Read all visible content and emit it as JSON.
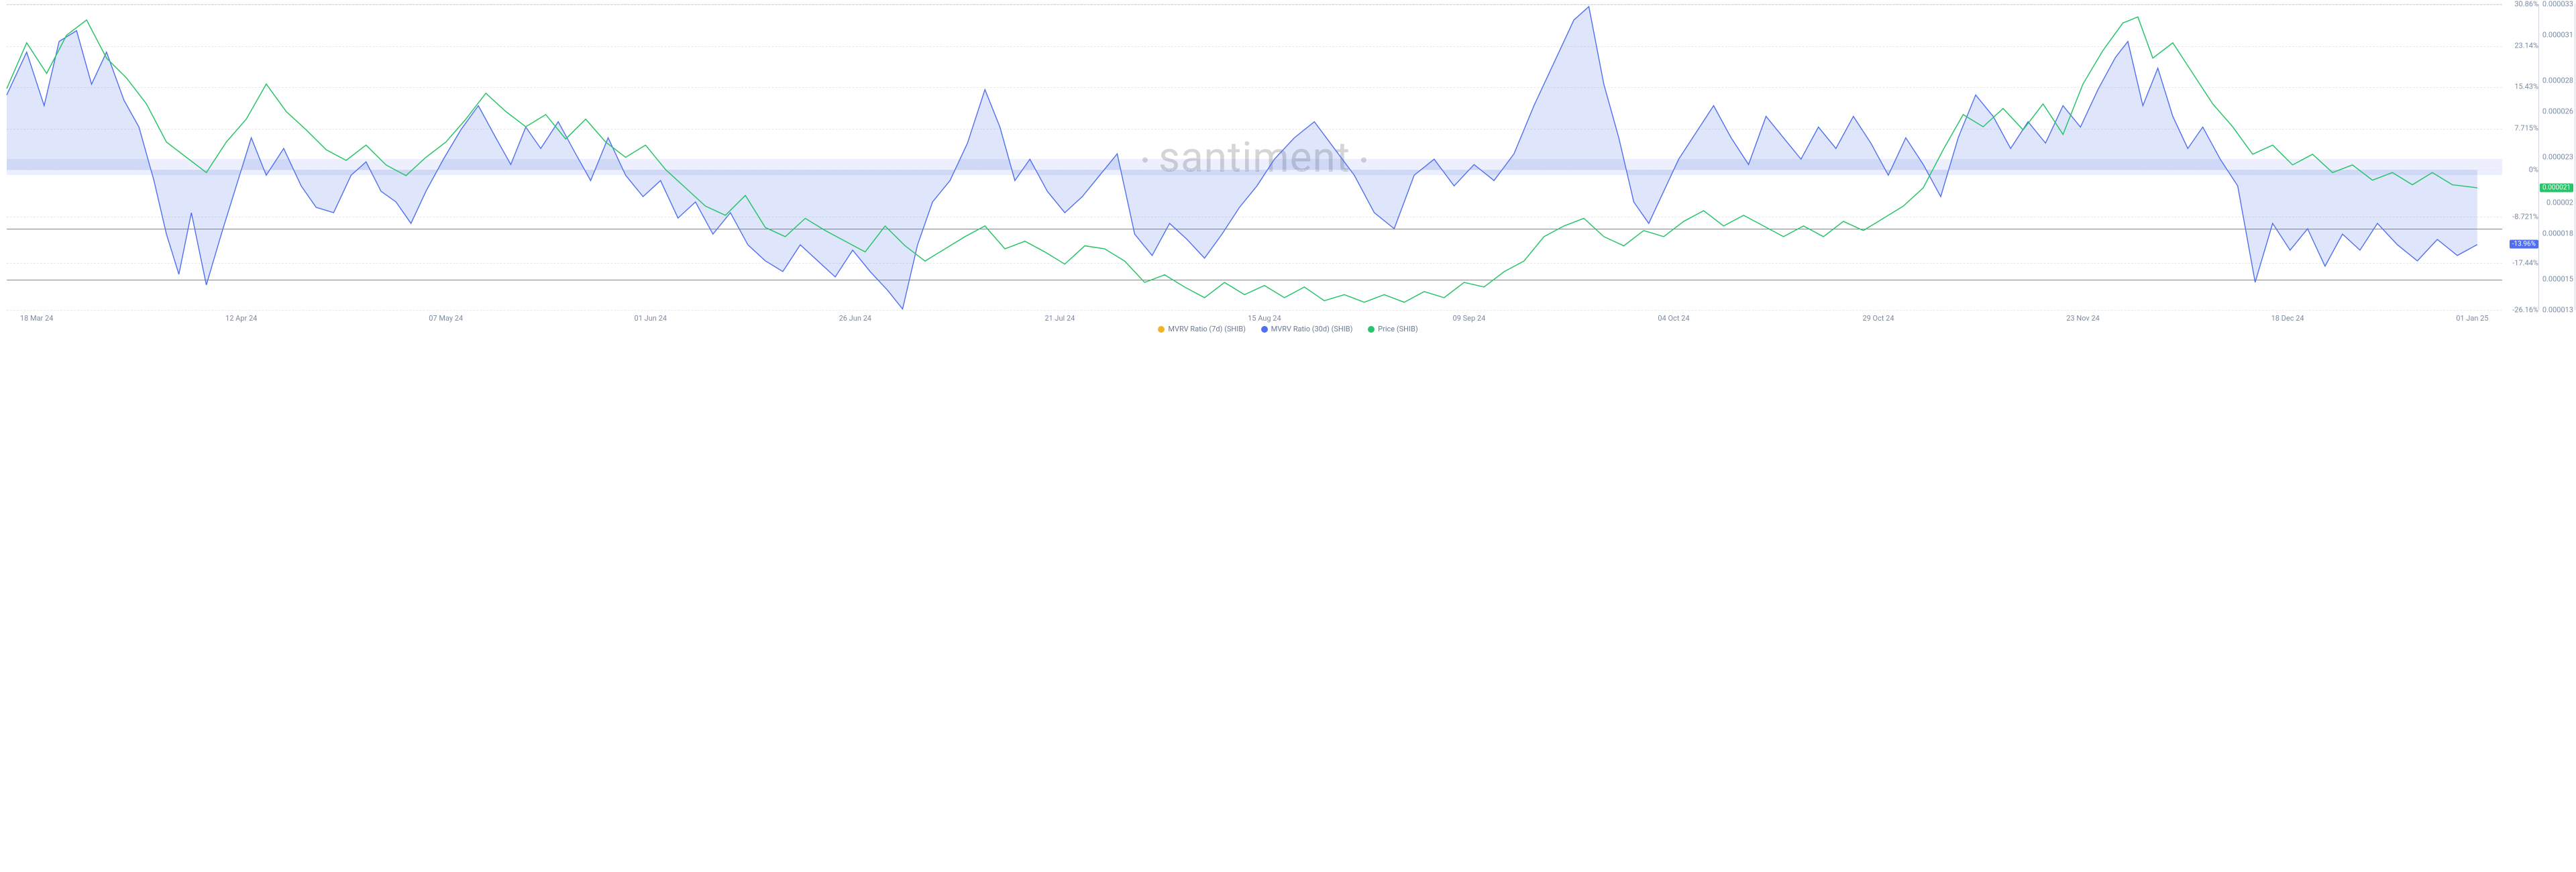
{
  "chart": {
    "type": "line",
    "background_color": "#ffffff",
    "grid_color": "#e8e8e8",
    "reference_line_color": "#888888",
    "zero_band_color": "rgba(80,110,230,0.10)",
    "watermark": "santiment",
    "watermark_color": "#d5d5d5",
    "x_ticks": [
      "18 Mar 24",
      "12 Apr 24",
      "07 May 24",
      "01 Jun 24",
      "26 Jun 24",
      "21 Jul 24",
      "15 Aug 24",
      "09 Sep 24",
      "04 Oct 24",
      "29 Oct 24",
      "23 Nov 24",
      "18 Dec 24",
      "01 Jan 25"
    ],
    "x_tick_positions_pct": [
      1.2,
      9.4,
      17.6,
      25.8,
      34.0,
      42.2,
      50.4,
      58.6,
      66.8,
      75.0,
      83.2,
      91.4,
      98.8
    ],
    "y_left": {
      "min": -26.16,
      "max": 30.86,
      "ticks": [
        30.86,
        23.14,
        15.43,
        7.715,
        0,
        -8.721,
        -17.44,
        -26.16
      ],
      "tick_labels": [
        "30.86%",
        "23.14%",
        "15.43%",
        "7.715%",
        "0%",
        "-8.721%",
        "-17.44%",
        "-26.16%"
      ],
      "tick_color": "#7a8aa0",
      "fontsize": 11
    },
    "y_right": {
      "min": 1.3e-05,
      "max": 3.3e-05,
      "ticks": [
        3.3e-05,
        3.1e-05,
        2.8e-05,
        2.6e-05,
        2.3e-05,
        2.1e-05,
        2e-05,
        1.8e-05,
        1.5e-05,
        1.3e-05
      ],
      "tick_labels": [
        "0.000033",
        "0.000031",
        "0.000028",
        "0.000026",
        "0.000023",
        "0.000021",
        "0.00002",
        "0.000018",
        "0.000015",
        "0.000013"
      ],
      "tick_color": "#7a8aa0",
      "fontsize": 11
    },
    "reference_lines_left": [
      -11.0,
      -20.5
    ],
    "current_badges": {
      "mvrv30d": {
        "value": "-13.96%",
        "at_y_left": -13.96,
        "bg": "#4f6ff0"
      },
      "price": {
        "value": "0.000021",
        "at_y_right": 2.1e-05,
        "bg": "#29c46a"
      }
    },
    "legend": [
      {
        "label": "MVRV Ratio (7d) (SHIB)",
        "color": "#f0b429"
      },
      {
        "label": "MVRV Ratio (30d) (SHIB)",
        "color": "#4f6ff0"
      },
      {
        "label": "Price (SHIB)",
        "color": "#29c46a"
      }
    ],
    "series": {
      "mvrv30d": {
        "color": "#4f6ff0",
        "fill": "rgba(80,110,230,0.18)",
        "line_width": 1.4,
        "axis": "left",
        "data": [
          [
            0.0,
            14.0
          ],
          [
            0.8,
            22.0
          ],
          [
            1.5,
            12.0
          ],
          [
            2.1,
            24.0
          ],
          [
            2.8,
            26.0
          ],
          [
            3.4,
            16.0
          ],
          [
            4.0,
            22.0
          ],
          [
            4.7,
            13.0
          ],
          [
            5.3,
            8.0
          ],
          [
            5.9,
            -2.0
          ],
          [
            6.4,
            -12.0
          ],
          [
            6.9,
            -19.5
          ],
          [
            7.4,
            -8.0
          ],
          [
            8.0,
            -21.5
          ],
          [
            8.6,
            -12.0
          ],
          [
            9.2,
            -3.0
          ],
          [
            9.8,
            6.0
          ],
          [
            10.4,
            -1.0
          ],
          [
            11.1,
            4.0
          ],
          [
            11.8,
            -3.0
          ],
          [
            12.4,
            -7.0
          ],
          [
            13.1,
            -8.0
          ],
          [
            13.8,
            -1.0
          ],
          [
            14.4,
            1.5
          ],
          [
            15.0,
            -4.0
          ],
          [
            15.6,
            -6.0
          ],
          [
            16.2,
            -10.0
          ],
          [
            16.8,
            -4.0
          ],
          [
            17.5,
            2.0
          ],
          [
            18.2,
            7.5
          ],
          [
            18.9,
            12.0
          ],
          [
            19.6,
            6.0
          ],
          [
            20.2,
            1.0
          ],
          [
            20.8,
            8.0
          ],
          [
            21.4,
            4.0
          ],
          [
            22.1,
            9.0
          ],
          [
            22.8,
            3.0
          ],
          [
            23.4,
            -2.0
          ],
          [
            24.1,
            6.0
          ],
          [
            24.8,
            -1.0
          ],
          [
            25.5,
            -5.0
          ],
          [
            26.2,
            -2.0
          ],
          [
            26.9,
            -9.0
          ],
          [
            27.6,
            -6.0
          ],
          [
            28.3,
            -12.0
          ],
          [
            29.0,
            -8.0
          ],
          [
            29.7,
            -14.0
          ],
          [
            30.4,
            -17.0
          ],
          [
            31.1,
            -19.0
          ],
          [
            31.8,
            -14.0
          ],
          [
            32.5,
            -17.0
          ],
          [
            33.2,
            -20.0
          ],
          [
            33.9,
            -15.0
          ],
          [
            34.6,
            -19.0
          ],
          [
            35.3,
            -22.5
          ],
          [
            35.9,
            -26.0
          ],
          [
            36.5,
            -14.0
          ],
          [
            37.1,
            -6.0
          ],
          [
            37.8,
            -2.0
          ],
          [
            38.5,
            5.0
          ],
          [
            39.2,
            15.0
          ],
          [
            39.8,
            8.0
          ],
          [
            40.4,
            -2.0
          ],
          [
            41.0,
            2.0
          ],
          [
            41.7,
            -4.0
          ],
          [
            42.4,
            -8.0
          ],
          [
            43.1,
            -5.0
          ],
          [
            43.8,
            -1.0
          ],
          [
            44.5,
            3.0
          ],
          [
            45.2,
            -12.0
          ],
          [
            45.9,
            -16.0
          ],
          [
            46.6,
            -10.0
          ],
          [
            47.3,
            -13.0
          ],
          [
            48.0,
            -16.5
          ],
          [
            48.7,
            -12.0
          ],
          [
            49.4,
            -7.0
          ],
          [
            50.1,
            -3.0
          ],
          [
            50.8,
            2.0
          ],
          [
            51.6,
            6.0
          ],
          [
            52.4,
            9.0
          ],
          [
            53.2,
            4.0
          ],
          [
            54.0,
            -1.0
          ],
          [
            54.8,
            -8.0
          ],
          [
            55.6,
            -11.0
          ],
          [
            56.4,
            -1.0
          ],
          [
            57.2,
            2.0
          ],
          [
            58.0,
            -3.0
          ],
          [
            58.8,
            1.0
          ],
          [
            59.6,
            -2.0
          ],
          [
            60.4,
            3.0
          ],
          [
            61.2,
            12.0
          ],
          [
            62.0,
            20.0
          ],
          [
            62.8,
            28.0
          ],
          [
            63.4,
            30.5
          ],
          [
            64.0,
            16.0
          ],
          [
            64.6,
            6.0
          ],
          [
            65.2,
            -6.0
          ],
          [
            65.8,
            -10.0
          ],
          [
            66.4,
            -4.0
          ],
          [
            67.0,
            2.0
          ],
          [
            67.7,
            7.0
          ],
          [
            68.4,
            12.0
          ],
          [
            69.1,
            6.0
          ],
          [
            69.8,
            1.0
          ],
          [
            70.5,
            10.0
          ],
          [
            71.2,
            6.0
          ],
          [
            71.9,
            2.0
          ],
          [
            72.6,
            8.0
          ],
          [
            73.3,
            4.0
          ],
          [
            74.0,
            10.0
          ],
          [
            74.7,
            5.0
          ],
          [
            75.4,
            -1.0
          ],
          [
            76.1,
            6.0
          ],
          [
            76.8,
            1.0
          ],
          [
            77.5,
            -5.0
          ],
          [
            78.2,
            6.0
          ],
          [
            78.9,
            14.0
          ],
          [
            79.6,
            10.0
          ],
          [
            80.3,
            4.0
          ],
          [
            81.0,
            9.0
          ],
          [
            81.7,
            5.0
          ],
          [
            82.4,
            12.0
          ],
          [
            83.1,
            8.0
          ],
          [
            83.8,
            15.0
          ],
          [
            84.5,
            21.0
          ],
          [
            85.0,
            24.0
          ],
          [
            85.6,
            12.0
          ],
          [
            86.2,
            19.0
          ],
          [
            86.8,
            10.0
          ],
          [
            87.4,
            4.0
          ],
          [
            88.0,
            8.0
          ],
          [
            88.7,
            2.0
          ],
          [
            89.4,
            -3.0
          ],
          [
            90.1,
            -21.0
          ],
          [
            90.8,
            -10.0
          ],
          [
            91.5,
            -15.0
          ],
          [
            92.2,
            -11.0
          ],
          [
            92.9,
            -18.0
          ],
          [
            93.6,
            -12.0
          ],
          [
            94.3,
            -15.0
          ],
          [
            95.0,
            -10.0
          ],
          [
            95.8,
            -14.0
          ],
          [
            96.6,
            -17.0
          ],
          [
            97.4,
            -13.0
          ],
          [
            98.2,
            -16.0
          ],
          [
            99.0,
            -13.96
          ]
        ]
      },
      "price": {
        "color": "#29c46a",
        "line_width": 1.5,
        "axis": "right",
        "data": [
          [
            0.0,
            2.75e-05
          ],
          [
            0.8,
            3.05e-05
          ],
          [
            1.6,
            2.85e-05
          ],
          [
            2.4,
            3.1e-05
          ],
          [
            3.2,
            3.2e-05
          ],
          [
            4.0,
            2.95e-05
          ],
          [
            4.8,
            2.82e-05
          ],
          [
            5.6,
            2.65e-05
          ],
          [
            6.4,
            2.4e-05
          ],
          [
            7.2,
            2.3e-05
          ],
          [
            8.0,
            2.2e-05
          ],
          [
            8.8,
            2.4e-05
          ],
          [
            9.6,
            2.55e-05
          ],
          [
            10.4,
            2.78e-05
          ],
          [
            11.2,
            2.6e-05
          ],
          [
            12.0,
            2.48e-05
          ],
          [
            12.8,
            2.35e-05
          ],
          [
            13.6,
            2.28e-05
          ],
          [
            14.4,
            2.38e-05
          ],
          [
            15.2,
            2.25e-05
          ],
          [
            16.0,
            2.18e-05
          ],
          [
            16.8,
            2.3e-05
          ],
          [
            17.6,
            2.4e-05
          ],
          [
            18.4,
            2.55e-05
          ],
          [
            19.2,
            2.72e-05
          ],
          [
            20.0,
            2.6e-05
          ],
          [
            20.8,
            2.5e-05
          ],
          [
            21.6,
            2.58e-05
          ],
          [
            22.4,
            2.42e-05
          ],
          [
            23.2,
            2.55e-05
          ],
          [
            24.0,
            2.4e-05
          ],
          [
            24.8,
            2.3e-05
          ],
          [
            25.6,
            2.38e-05
          ],
          [
            26.4,
            2.22e-05
          ],
          [
            27.2,
            2.1e-05
          ],
          [
            28.0,
            1.98e-05
          ],
          [
            28.8,
            1.92e-05
          ],
          [
            29.6,
            2.05e-05
          ],
          [
            30.4,
            1.84e-05
          ],
          [
            31.2,
            1.78e-05
          ],
          [
            32.0,
            1.9e-05
          ],
          [
            32.8,
            1.82e-05
          ],
          [
            33.6,
            1.75e-05
          ],
          [
            34.4,
            1.68e-05
          ],
          [
            35.2,
            1.85e-05
          ],
          [
            36.0,
            1.72e-05
          ],
          [
            36.8,
            1.62e-05
          ],
          [
            37.6,
            1.7e-05
          ],
          [
            38.4,
            1.78e-05
          ],
          [
            39.2,
            1.85e-05
          ],
          [
            40.0,
            1.7e-05
          ],
          [
            40.8,
            1.75e-05
          ],
          [
            41.6,
            1.68e-05
          ],
          [
            42.4,
            1.6e-05
          ],
          [
            43.2,
            1.72e-05
          ],
          [
            44.0,
            1.7e-05
          ],
          [
            44.8,
            1.62e-05
          ],
          [
            45.6,
            1.48e-05
          ],
          [
            46.4,
            1.53e-05
          ],
          [
            47.2,
            1.45e-05
          ],
          [
            48.0,
            1.38e-05
          ],
          [
            48.8,
            1.48e-05
          ],
          [
            49.6,
            1.4e-05
          ],
          [
            50.4,
            1.46e-05
          ],
          [
            51.2,
            1.38e-05
          ],
          [
            52.0,
            1.45e-05
          ],
          [
            52.8,
            1.36e-05
          ],
          [
            53.6,
            1.4e-05
          ],
          [
            54.4,
            1.35e-05
          ],
          [
            55.2,
            1.4e-05
          ],
          [
            56.0,
            1.35e-05
          ],
          [
            56.8,
            1.42e-05
          ],
          [
            57.6,
            1.38e-05
          ],
          [
            58.4,
            1.48e-05
          ],
          [
            59.2,
            1.45e-05
          ],
          [
            60.0,
            1.55e-05
          ],
          [
            60.8,
            1.62e-05
          ],
          [
            61.6,
            1.78e-05
          ],
          [
            62.4,
            1.85e-05
          ],
          [
            63.2,
            1.9e-05
          ],
          [
            64.0,
            1.78e-05
          ],
          [
            64.8,
            1.72e-05
          ],
          [
            65.6,
            1.82e-05
          ],
          [
            66.4,
            1.78e-05
          ],
          [
            67.2,
            1.88e-05
          ],
          [
            68.0,
            1.95e-05
          ],
          [
            68.8,
            1.85e-05
          ],
          [
            69.6,
            1.92e-05
          ],
          [
            70.4,
            1.85e-05
          ],
          [
            71.2,
            1.78e-05
          ],
          [
            72.0,
            1.85e-05
          ],
          [
            72.8,
            1.78e-05
          ],
          [
            73.6,
            1.88e-05
          ],
          [
            74.4,
            1.82e-05
          ],
          [
            75.2,
            1.9e-05
          ],
          [
            76.0,
            1.98e-05
          ],
          [
            76.8,
            2.1e-05
          ],
          [
            77.6,
            2.35e-05
          ],
          [
            78.4,
            2.58e-05
          ],
          [
            79.2,
            2.5e-05
          ],
          [
            80.0,
            2.62e-05
          ],
          [
            80.8,
            2.48e-05
          ],
          [
            81.6,
            2.65e-05
          ],
          [
            82.4,
            2.45e-05
          ],
          [
            83.2,
            2.78e-05
          ],
          [
            84.0,
            3e-05
          ],
          [
            84.8,
            3.18e-05
          ],
          [
            85.4,
            3.22e-05
          ],
          [
            86.0,
            2.95e-05
          ],
          [
            86.8,
            3.05e-05
          ],
          [
            87.6,
            2.85e-05
          ],
          [
            88.4,
            2.65e-05
          ],
          [
            89.2,
            2.5e-05
          ],
          [
            90.0,
            2.32e-05
          ],
          [
            90.8,
            2.38e-05
          ],
          [
            91.6,
            2.25e-05
          ],
          [
            92.4,
            2.32e-05
          ],
          [
            93.2,
            2.2e-05
          ],
          [
            94.0,
            2.25e-05
          ],
          [
            94.8,
            2.15e-05
          ],
          [
            95.6,
            2.2e-05
          ],
          [
            96.4,
            2.12e-05
          ],
          [
            97.2,
            2.2e-05
          ],
          [
            98.0,
            2.12e-05
          ],
          [
            99.0,
            2.1e-05
          ]
        ]
      }
    }
  }
}
